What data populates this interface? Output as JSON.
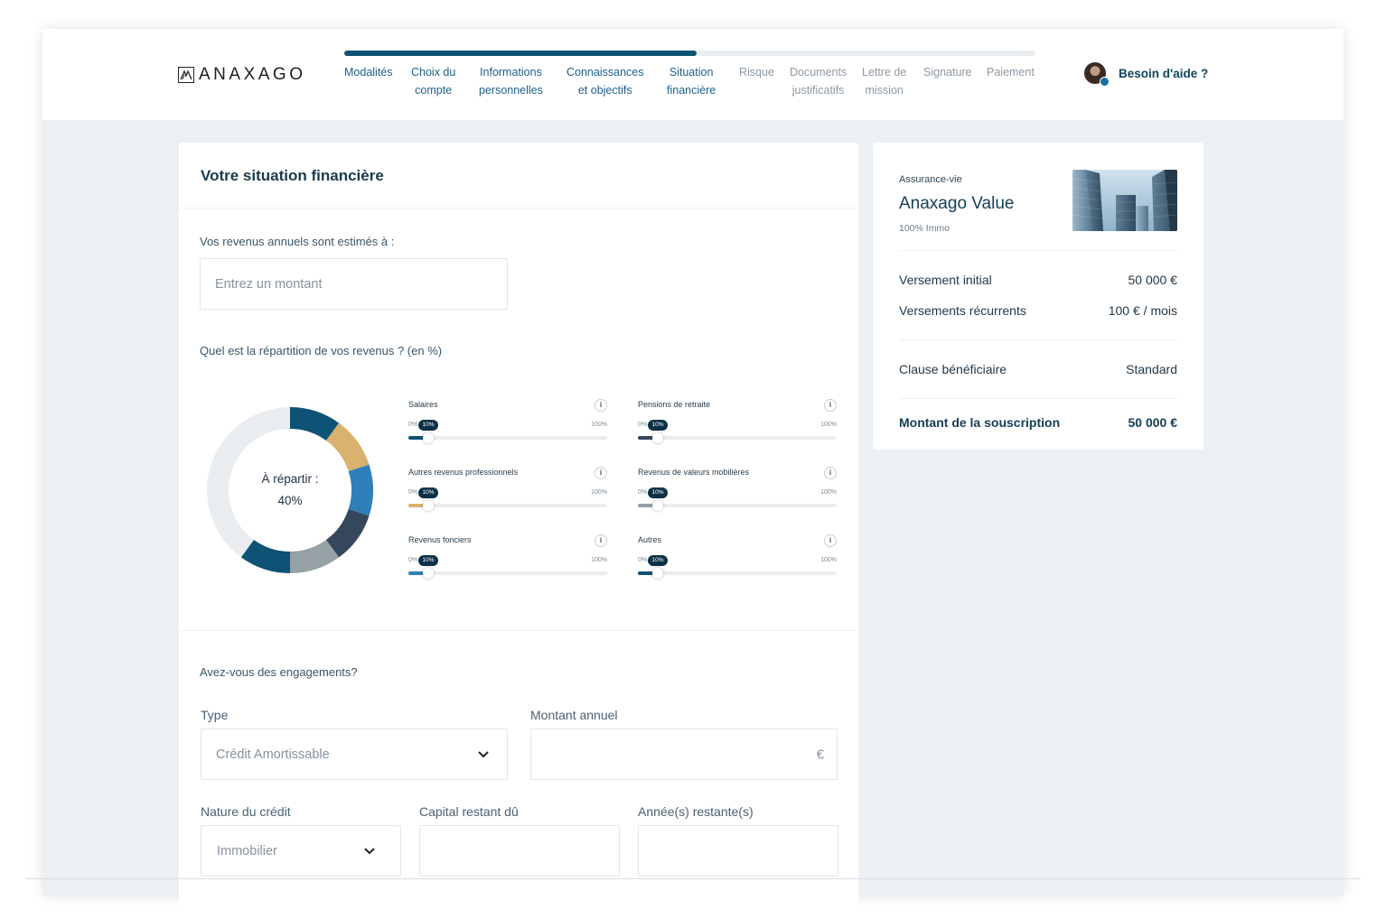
{
  "header": {
    "logo_text": "ANAXAGO",
    "progress_fraction": 0.51,
    "steps": [
      {
        "line1": "Modalités",
        "line2": "",
        "state": "done"
      },
      {
        "line1": "Choix du",
        "line2": "compte",
        "state": "done"
      },
      {
        "line1": "Informations",
        "line2": "personnelles",
        "state": "done"
      },
      {
        "line1": "Connaissances",
        "line2": "et objectifs",
        "state": "done"
      },
      {
        "line1": "Situation",
        "line2": "financière",
        "state": "done"
      },
      {
        "line1": "Risque",
        "line2": "",
        "state": "todo"
      },
      {
        "line1": "Documents",
        "line2": "justificatifs",
        "state": "todo"
      },
      {
        "line1": "Lettre de",
        "line2": "mission",
        "state": "todo"
      },
      {
        "line1": "Signature",
        "line2": "",
        "state": "todo"
      },
      {
        "line1": "Paiement",
        "line2": "",
        "state": "todo"
      }
    ],
    "help_label": "Besoin d'aide ?"
  },
  "form": {
    "title": "Votre situation financière",
    "income_label": "Vos revenus annuels sont estimés à :",
    "income_placeholder": "Entrez un montant",
    "split_label": "Quel est la répartition de vos revenus ? (en %)",
    "donut": {
      "center_line1": "À répartir :",
      "center_line2": "40%",
      "remaining_color": "#e9edf0",
      "segments": [
        {
          "name": "Salaires",
          "percent": 10,
          "color": "#0e5275"
        },
        {
          "name": "Autres revenus professionnels",
          "percent": 10,
          "color": "#d8b26e"
        },
        {
          "name": "Revenus fonciers",
          "percent": 10,
          "color": "#2f7fb8"
        },
        {
          "name": "Pensions de retraite",
          "percent": 10,
          "color": "#34475b"
        },
        {
          "name": "Revenus de valeurs mobilières",
          "percent": 10,
          "color": "#95a1a4"
        },
        {
          "name": "Autres",
          "percent": 10,
          "color": "#0e5275"
        }
      ]
    },
    "sliders": [
      {
        "name": "Salaires",
        "info": "i",
        "min": "0%",
        "max": "100%",
        "value": 10,
        "value_label": "10%",
        "color": "#0e5275"
      },
      {
        "name": "Autres revenus professionnels",
        "info": "i",
        "min": "0%",
        "max": "100%",
        "value": 10,
        "value_label": "10%",
        "color": "#d8b26e"
      },
      {
        "name": "Revenus fonciers",
        "info": "i",
        "min": "0%",
        "max": "100%",
        "value": 10,
        "value_label": "10%",
        "color": "#2f7fb8"
      },
      {
        "name": "Pensions de retraite",
        "info": "i",
        "min": "0%",
        "max": "100%",
        "value": 10,
        "value_label": "10%",
        "color": "#34475b"
      },
      {
        "name": "Revenus de valeurs mobilières",
        "info": "i",
        "min": "0%",
        "max": "100%",
        "value": 10,
        "value_label": "10%",
        "color": "#95a1a4"
      },
      {
        "name": "Autres",
        "info": "i",
        "min": "0%",
        "max": "100%",
        "value": 10,
        "value_label": "10%",
        "color": "#0e5275"
      }
    ],
    "commitments_label": "Avez-vous des engagements?",
    "type_label": "Type",
    "type_value": "Crédit Amortissable",
    "annual_label": "Montant annuel",
    "annual_suffix": "€",
    "credit_nature_label": "Nature du crédit",
    "credit_nature_value": "Immobilier",
    "capital_label": "Capital restant dû",
    "years_label": "Année(s) restante(s)"
  },
  "summary": {
    "category": "Assurance-vie",
    "product": "Anaxago Value",
    "subtitle": "100% Immo",
    "rows": [
      {
        "label": "Versement initial",
        "value": "50 000 €"
      },
      {
        "label": "Versements récurrents",
        "value": "100 € / mois"
      }
    ],
    "clause_label": "Clause bénéficiaire",
    "clause_value": "Standard",
    "total_label": "Montant de la souscription",
    "total_value": "50 000 €"
  }
}
